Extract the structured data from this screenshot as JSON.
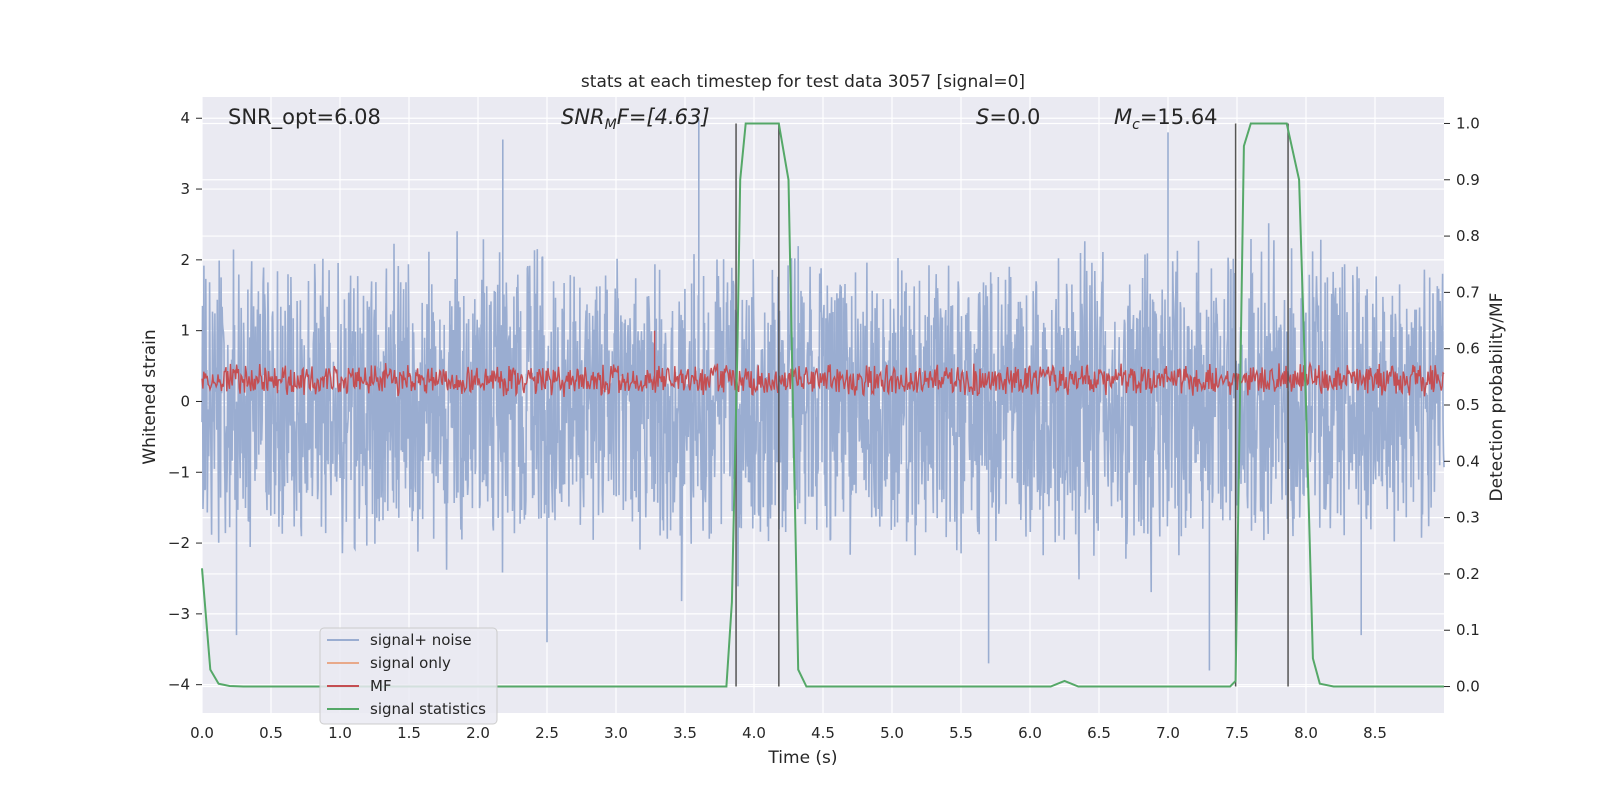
{
  "chart_data": {
    "type": "line",
    "title": "stats at each timestep for test data 3057 [signal=0]",
    "xlabel": "Time (s)",
    "ylabel": "Whitened strain",
    "y2label": "Detection probability/MF",
    "xlim": [
      0.0,
      9.0
    ],
    "ylim": [
      -4.4,
      4.3
    ],
    "y2lim": [
      -0.047,
      1.047
    ],
    "xticks": [
      "0.0",
      "0.5",
      "1.0",
      "1.5",
      "2.0",
      "2.5",
      "3.0",
      "3.5",
      "4.0",
      "4.5",
      "5.0",
      "5.5",
      "6.0",
      "6.5",
      "7.0",
      "7.5",
      "8.0",
      "8.5"
    ],
    "yticks": [
      "4",
      "3",
      "2",
      "1",
      "0",
      "−1",
      "−2",
      "−3",
      "−4"
    ],
    "y2ticks": [
      "1.0",
      "0.9",
      "0.8",
      "0.7",
      "0.6",
      "0.5",
      "0.4",
      "0.3",
      "0.2",
      "0.1",
      "0.0"
    ],
    "grid": true,
    "legend_position": "lower-left",
    "annotations": {
      "snr_opt": "SNR_opt=6.08",
      "snr_mf_base": "SNR",
      "snr_mf_sub": "M",
      "snr_mf_rest": "F=[4.63]",
      "s_var": "S",
      "s_rest": "=0.0",
      "mc_base": "M",
      "mc_sub": "c",
      "mc_rest": "=15.64"
    },
    "series": [
      {
        "name": "signal+ noise",
        "color": "#9aadd1",
        "axis": "left",
        "style": "noise",
        "amplitude_envelope": 2.3,
        "peak_values": [
          [
            2.18,
            3.7
          ],
          [
            3.6,
            4.0
          ],
          [
            7.0,
            3.8
          ],
          [
            0.25,
            -3.3
          ],
          [
            2.5,
            -3.4
          ],
          [
            5.7,
            -3.7
          ],
          [
            7.3,
            -3.8
          ],
          [
            8.4,
            -3.3
          ]
        ]
      },
      {
        "name": "signal only",
        "color": "#e8a98a",
        "axis": "left",
        "values": []
      },
      {
        "name": "MF",
        "color": "#c44e52",
        "axis": "left",
        "style": "noise",
        "baseline": 0.3,
        "amplitude": 0.25,
        "peak_values": [
          [
            3.28,
            1.0
          ]
        ]
      },
      {
        "name": "signal statistics",
        "color": "#55a868",
        "axis": "right",
        "x": [
          0.0,
          0.06,
          0.12,
          0.2,
          0.3,
          3.8,
          3.84,
          3.88,
          3.9,
          3.94,
          4.0,
          4.1,
          4.18,
          4.25,
          4.32,
          4.38,
          6.15,
          6.25,
          6.35,
          7.45,
          7.49,
          7.55,
          7.6,
          7.7,
          7.86,
          7.95,
          8.0,
          8.05,
          8.1,
          8.2,
          9.0
        ],
        "values": [
          0.21,
          0.03,
          0.005,
          0.001,
          0.0,
          0.0,
          0.15,
          0.6,
          0.9,
          1.0,
          1.0,
          1.0,
          1.0,
          0.9,
          0.03,
          0.0,
          0.0,
          0.01,
          0.0,
          0.0,
          0.01,
          0.96,
          1.0,
          1.0,
          1.0,
          0.9,
          0.5,
          0.05,
          0.005,
          0.0,
          0.0
        ]
      }
    ],
    "vertical_lines": [
      3.87,
      4.18,
      7.49,
      7.87
    ],
    "vertical_line_color": "#555555",
    "vertical_line_range": [
      0.0,
      1.0
    ],
    "plot_background": "#eaeaf2",
    "grid_color": "#ffffff"
  }
}
